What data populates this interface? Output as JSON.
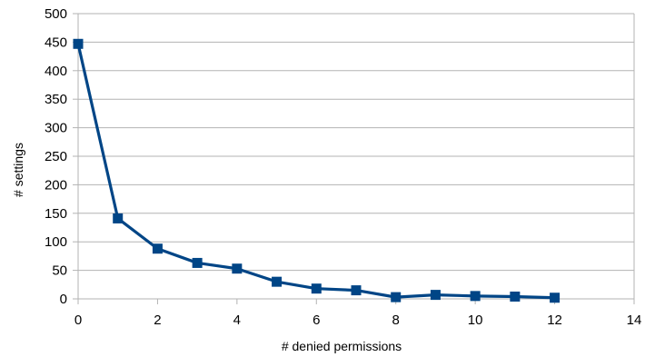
{
  "chart_data": {
    "type": "line",
    "title": "",
    "xlabel": "# denied permissions",
    "ylabel": "# settings",
    "xlim": [
      0,
      14
    ],
    "ylim": [
      0,
      500
    ],
    "x_ticks": [
      "0",
      "2",
      "4",
      "6",
      "8",
      "10",
      "12",
      "14"
    ],
    "y_ticks": [
      "0",
      "50",
      "100",
      "150",
      "200",
      "250",
      "300",
      "350",
      "400",
      "450",
      "500"
    ],
    "grid": "horizontal",
    "series": [
      {
        "x": [
          0,
          1,
          2,
          3,
          4,
          5,
          6,
          7,
          8,
          9,
          10,
          11,
          12
        ],
        "y": [
          447,
          141,
          88,
          63,
          53,
          30,
          18,
          15,
          3,
          7,
          5,
          4,
          2
        ],
        "color": "#004586",
        "marker": "square"
      }
    ]
  }
}
